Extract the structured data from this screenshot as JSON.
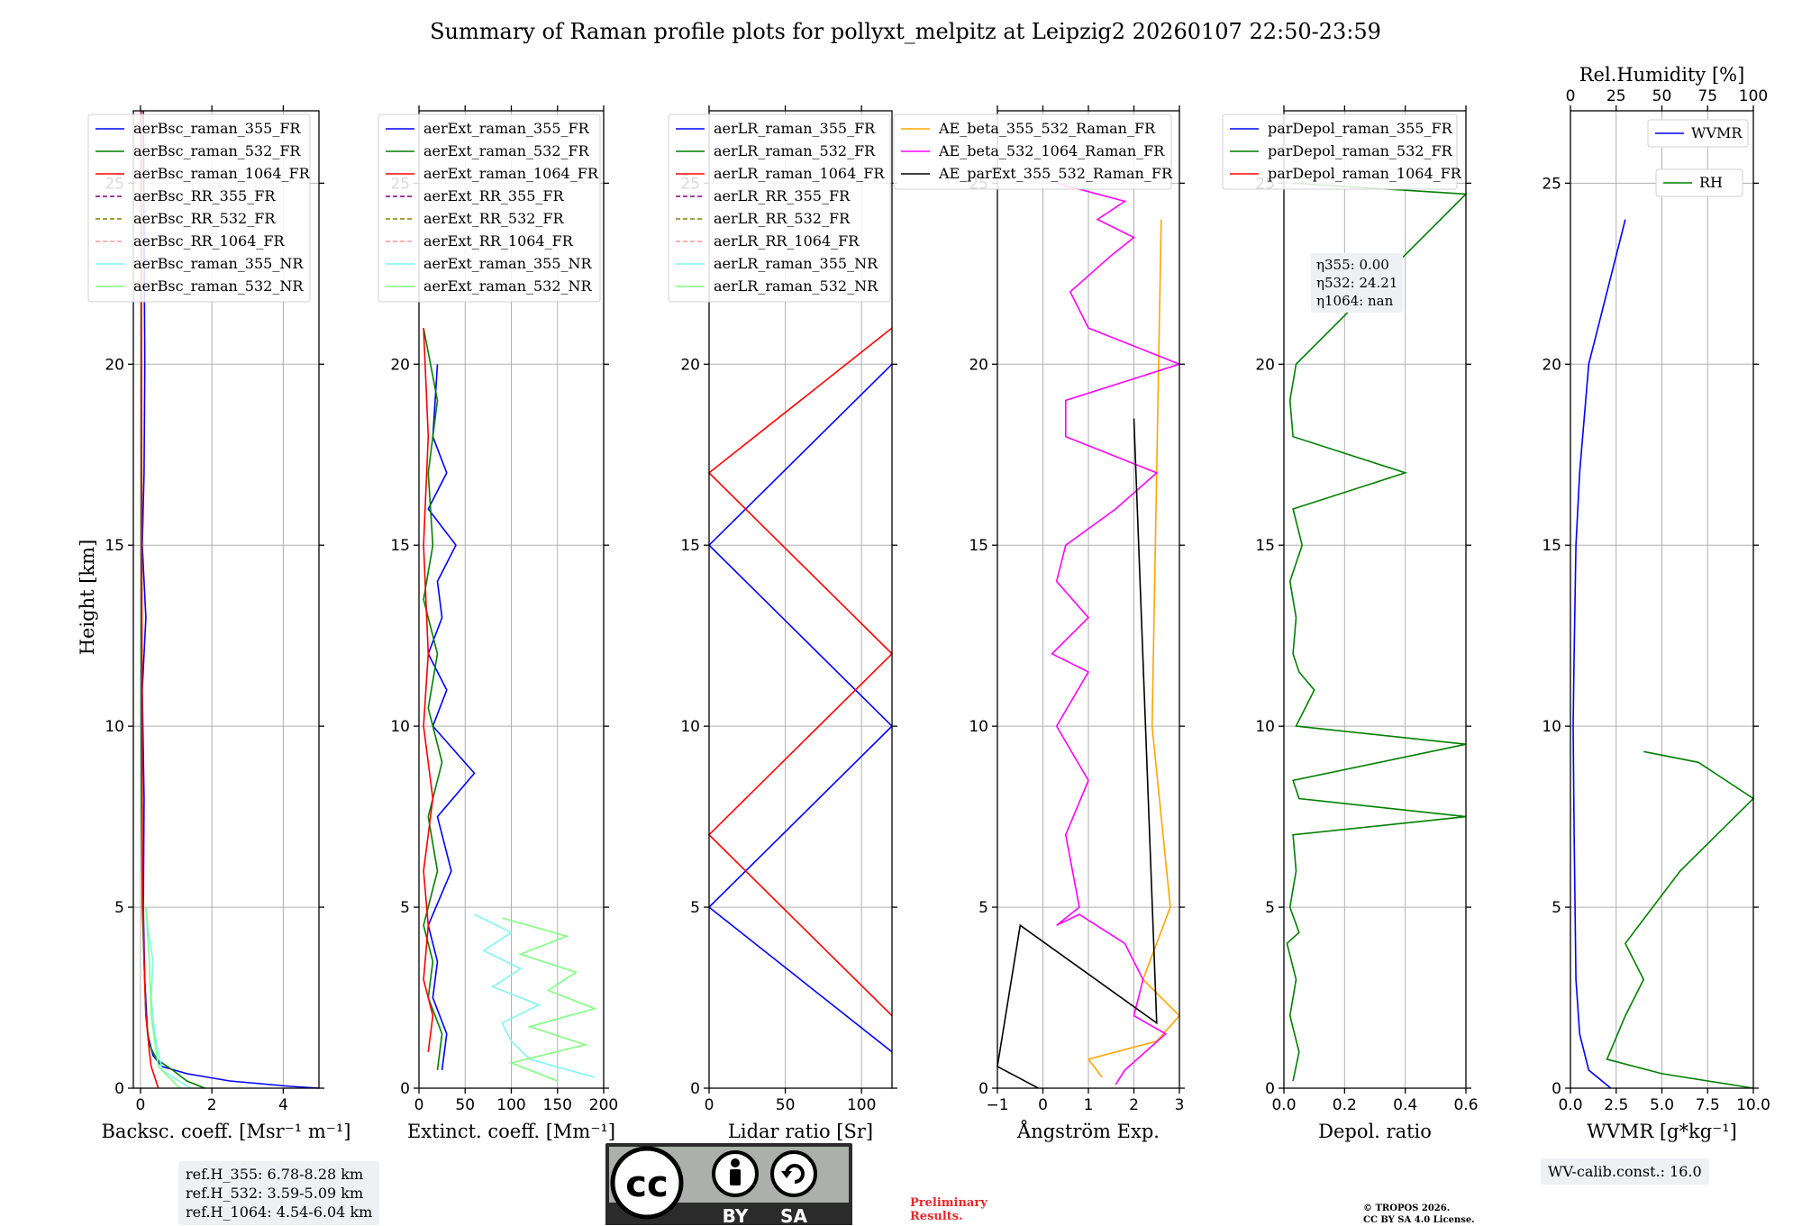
{
  "title": "Summary of Raman profile plots for pollyxt_melpitz at Leipzig2 20260107 22:50-23:59",
  "ylabel": "Height [km]",
  "notes": {
    "refh": [
      "ref.H_355: 6.78-8.28 km",
      "ref.H_532: 3.59-5.09 km",
      "ref.H_1064: 4.54-6.04 km"
    ],
    "wv_calib": "WV-calib.const.: 16.0",
    "preliminary": [
      "Preliminary",
      "Results."
    ],
    "copyright": [
      "© TROPOS 2026.",
      "CC BY SA 4.0 License."
    ],
    "eta": [
      "η355: 0.00",
      "η532: 24.21",
      "η1064: nan"
    ],
    "cc_logo": {
      "cc": "cc",
      "by": "BY",
      "sa": "SA"
    }
  },
  "colors": {
    "blue": "#0000ff",
    "green": "#008000",
    "red": "#ff0000",
    "purple": "#800080",
    "olive": "#808000",
    "salmon": "#ff9999",
    "cyan": "#7ff5f5",
    "lightgreen": "#80ff80",
    "orange": "#ffa500",
    "magenta": "#ff00ff",
    "black": "#000000"
  },
  "chart_data": [
    {
      "type": "line",
      "xlabel": "Backsc. coeff. [Msr⁻¹ m⁻¹]",
      "xlim": [
        -0.2,
        5
      ],
      "ylim": [
        0,
        27
      ],
      "xticks": [
        0,
        2,
        4
      ],
      "xticklabels": [
        "0",
        "2",
        "4"
      ],
      "yticks": [
        0,
        5,
        10,
        15,
        20,
        25
      ],
      "legend": [
        {
          "label": "aerBsc_raman_355_FR",
          "color": "blue",
          "dash": false
        },
        {
          "label": "aerBsc_raman_532_FR",
          "color": "green",
          "dash": false
        },
        {
          "label": "aerBsc_raman_1064_FR",
          "color": "red",
          "dash": false
        },
        {
          "label": "aerBsc_RR_355_FR",
          "color": "purple",
          "dash": true
        },
        {
          "label": "aerBsc_RR_532_FR",
          "color": "olive",
          "dash": true
        },
        {
          "label": "aerBsc_RR_1064_FR",
          "color": "salmon",
          "dash": true
        },
        {
          "label": "aerBsc_raman_355_NR",
          "color": "cyan",
          "dash": false
        },
        {
          "label": "aerBsc_raman_532_NR",
          "color": "lightgreen",
          "dash": false
        }
      ],
      "series": [
        {
          "name": "aerBsc_raman_355_FR",
          "color": "blue",
          "x": [
            5,
            4.2,
            2.5,
            1.3,
            0.6,
            0.35,
            0.2,
            0.12,
            0.08,
            0.1,
            0.05,
            0.15,
            0.05,
            0.1,
            0.12,
            0.08
          ],
          "y": [
            0,
            0.05,
            0.2,
            0.4,
            0.6,
            0.9,
            1.5,
            3,
            5,
            8,
            11,
            13,
            15,
            17,
            20,
            27
          ]
        },
        {
          "name": "aerBsc_raman_532_FR",
          "color": "green",
          "x": [
            1.8,
            1.3,
            0.9,
            0.45,
            0.25,
            0.15,
            0.1,
            0.05,
            0.02,
            0.02
          ],
          "y": [
            0,
            0.2,
            0.5,
            0.8,
            1.2,
            2,
            3.5,
            5,
            10,
            27
          ]
        },
        {
          "name": "aerBsc_raman_1064_FR",
          "color": "red",
          "x": [
            0.5,
            0.4,
            0.3,
            0.25,
            0.15,
            0.1,
            0.05,
            0.02
          ],
          "y": [
            0,
            0.3,
            0.6,
            1,
            2,
            3.5,
            6,
            27
          ]
        },
        {
          "name": "aerBsc_raman_355_NR",
          "color": "cyan",
          "x": [
            1.4,
            0.6,
            0.4,
            0.3,
            0.35,
            0.2,
            0.15
          ],
          "y": [
            0,
            0.5,
            1.5,
            2.5,
            3.5,
            4.5,
            5
          ]
        },
        {
          "name": "aerBsc_raman_532_NR",
          "color": "lightgreen",
          "x": [
            1.1,
            0.5,
            0.3,
            0.25,
            0.15
          ],
          "y": [
            0,
            0.6,
            2,
            3.5,
            5
          ]
        }
      ]
    },
    {
      "type": "line",
      "xlabel": "Extinct. coeff. [Mm⁻¹]",
      "xlim": [
        0,
        200
      ],
      "ylim": [
        0,
        27
      ],
      "xticks": [
        0,
        50,
        100,
        150,
        200
      ],
      "xticklabels": [
        "0",
        "50",
        "100",
        "150",
        "200"
      ],
      "yticks": [
        0,
        5,
        10,
        15,
        20,
        25
      ],
      "legend": [
        {
          "label": "aerExt_raman_355_FR",
          "color": "blue",
          "dash": false
        },
        {
          "label": "aerExt_raman_532_FR",
          "color": "green",
          "dash": false
        },
        {
          "label": "aerExt_raman_1064_FR",
          "color": "red",
          "dash": false
        },
        {
          "label": "aerExt_RR_355_FR",
          "color": "purple",
          "dash": true
        },
        {
          "label": "aerExt_RR_532_FR",
          "color": "olive",
          "dash": true
        },
        {
          "label": "aerExt_RR_1064_FR",
          "color": "salmon",
          "dash": true
        },
        {
          "label": "aerExt_raman_355_NR",
          "color": "cyan",
          "dash": false
        },
        {
          "label": "aerExt_raman_532_NR",
          "color": "lightgreen",
          "dash": false
        }
      ],
      "series": [
        {
          "name": "aerExt_raman_355_FR",
          "color": "blue",
          "x": [
            25,
            30,
            15,
            20,
            10,
            35,
            20,
            60,
            15,
            30,
            10,
            25,
            20,
            40,
            10,
            30,
            15,
            20
          ],
          "y": [
            0.5,
            1.5,
            2.5,
            3.5,
            4.5,
            6,
            7.5,
            8.7,
            10,
            11,
            12,
            13,
            14,
            15,
            16,
            17,
            18,
            20
          ]
        },
        {
          "name": "aerExt_raman_532_FR",
          "color": "green",
          "x": [
            20,
            25,
            10,
            15,
            5,
            20,
            10,
            25,
            10,
            20,
            5,
            15,
            10,
            20,
            5
          ],
          "y": [
            0.5,
            1.5,
            2.5,
            3.5,
            4.5,
            6,
            7.5,
            9,
            10.5,
            12,
            13.5,
            15,
            17,
            19,
            21
          ]
        },
        {
          "name": "aerExt_raman_1064_FR",
          "color": "red",
          "x": [
            10,
            15,
            5,
            10,
            5,
            15,
            5,
            10,
            5,
            10,
            5
          ],
          "y": [
            1,
            2,
            3,
            4.5,
            6,
            8,
            10,
            12,
            15,
            18,
            21
          ]
        },
        {
          "name": "aerExt_raman_355_NR",
          "color": "cyan",
          "x": [
            190,
            120,
            100,
            90,
            130,
            80,
            110,
            70,
            100,
            60
          ],
          "y": [
            0.3,
            0.8,
            1.3,
            1.8,
            2.3,
            2.8,
            3.3,
            3.8,
            4.3,
            4.8
          ]
        },
        {
          "name": "aerExt_raman_532_NR",
          "color": "lightgreen",
          "x": [
            150,
            100,
            180,
            120,
            190,
            140,
            170,
            110,
            160,
            90
          ],
          "y": [
            0.2,
            0.7,
            1.2,
            1.7,
            2.2,
            2.7,
            3.2,
            3.7,
            4.2,
            4.7
          ]
        }
      ]
    },
    {
      "type": "line",
      "xlabel": "Lidar ratio [Sr]",
      "xlim": [
        0,
        120
      ],
      "ylim": [
        0,
        27
      ],
      "xticks": [
        0,
        50,
        100
      ],
      "xticklabels": [
        "0",
        "50",
        "100"
      ],
      "yticks": [
        0,
        5,
        10,
        15,
        20,
        25
      ],
      "legend": [
        {
          "label": "aerLR_raman_355_FR",
          "color": "blue",
          "dash": false
        },
        {
          "label": "aerLR_raman_532_FR",
          "color": "green",
          "dash": false
        },
        {
          "label": "aerLR_raman_1064_FR",
          "color": "red",
          "dash": false
        },
        {
          "label": "aerLR_RR_355_FR",
          "color": "purple",
          "dash": true
        },
        {
          "label": "aerLR_RR_532_FR",
          "color": "olive",
          "dash": true
        },
        {
          "label": "aerLR_RR_1064_FR",
          "color": "salmon",
          "dash": true
        },
        {
          "label": "aerLR_raman_355_NR",
          "color": "cyan",
          "dash": false
        },
        {
          "label": "aerLR_raman_532_NR",
          "color": "lightgreen",
          "dash": false
        }
      ],
      "series": [
        {
          "name": "aerLR_raman_355_FR",
          "color": "blue",
          "x": [
            120,
            0,
            120,
            0,
            120
          ],
          "y": [
            1,
            5,
            10,
            15,
            20
          ]
        },
        {
          "name": "aerLR_raman_1064_FR",
          "color": "red",
          "x": [
            120,
            0,
            120,
            0,
            120
          ],
          "y": [
            2,
            7,
            12,
            17,
            21
          ]
        }
      ]
    },
    {
      "type": "line",
      "xlabel": "Ångström Exp.",
      "xlim": [
        -1,
        3
      ],
      "ylim": [
        0,
        27
      ],
      "xticks": [
        -1,
        0,
        1,
        2,
        3
      ],
      "xticklabels": [
        "−1",
        "0",
        "1",
        "2",
        "3"
      ],
      "yticks": [
        0,
        5,
        10,
        15,
        20,
        25
      ],
      "legend": [
        {
          "label": "AE_beta_355_532_Raman_FR",
          "color": "orange",
          "dash": false
        },
        {
          "label": "AE_beta_532_1064_Raman_FR",
          "color": "magenta",
          "dash": false
        },
        {
          "label": "AE_parExt_355_532_Raman_FR",
          "color": "black",
          "dash": false
        }
      ],
      "series": [
        {
          "name": "AE_beta_355_532_Raman_FR",
          "color": "orange",
          "x": [
            1.3,
            1.0,
            2.5,
            3.0,
            2.2,
            2.8,
            2.4,
            2.6
          ],
          "y": [
            0.3,
            0.8,
            1.3,
            2,
            3,
            5,
            10,
            24
          ]
        },
        {
          "name": "AE_beta_532_1064_Raman_FR",
          "color": "magenta",
          "x": [
            1.6,
            1.8,
            2.7,
            2.0,
            2.2,
            1.8,
            0.8,
            0.3,
            0.8,
            0.5,
            1.0,
            0.3,
            1.0,
            0.2,
            1.0,
            0.3,
            0.5,
            1.6,
            2.5,
            0.5,
            0.5,
            3.0,
            1.0,
            0.6,
            1.5,
            2.0,
            1.2,
            1.8,
            0.3
          ],
          "y": [
            0.1,
            0.5,
            1.5,
            2,
            3,
            4,
            4.8,
            4.5,
            5,
            7,
            8.5,
            10,
            11.5,
            12,
            13,
            14,
            15,
            16,
            17,
            18,
            19,
            20,
            21,
            22,
            23,
            23.5,
            24,
            24.5,
            25
          ]
        },
        {
          "name": "AE_parExt_355_532_Raman_FR",
          "color": "black",
          "x": [
            -0.1,
            -1.0,
            -0.5,
            2.5,
            2.0
          ],
          "y": [
            0,
            0.6,
            4.5,
            1.8,
            18.5
          ]
        }
      ]
    },
    {
      "type": "line",
      "xlabel": "Depol. ratio",
      "xlim": [
        0,
        0.6
      ],
      "ylim": [
        0,
        27
      ],
      "xticks": [
        0,
        0.2,
        0.4,
        0.6
      ],
      "xticklabels": [
        "0.0",
        "0.2",
        "0.4",
        "0.6"
      ],
      "yticks": [
        0,
        5,
        10,
        15,
        20,
        25
      ],
      "legend": [
        {
          "label": "parDepol_raman_355_FR",
          "color": "blue",
          "dash": false
        },
        {
          "label": "parDepol_raman_532_FR",
          "color": "green",
          "dash": false
        },
        {
          "label": "parDepol_raman_1064_FR",
          "color": "red",
          "dash": false
        }
      ],
      "series": [
        {
          "name": "parDepol_raman_532_FR",
          "color": "green",
          "x": [
            0.03,
            0.05,
            0.02,
            0.04,
            0.01,
            0.05,
            0.02,
            0.04,
            0.03,
            0.6,
            0.05,
            0.03,
            0.6,
            0.04,
            0.1,
            0.05,
            0.03,
            0.04,
            0.02,
            0.06,
            0.03,
            0.4,
            0.03,
            0.02,
            0.04,
            0.6,
            0.03
          ],
          "y": [
            0.2,
            1,
            2,
            3,
            4,
            4.3,
            5,
            6,
            7,
            7.5,
            8,
            8.5,
            9.5,
            10,
            11,
            11.5,
            12,
            13,
            14,
            15,
            16,
            17,
            18,
            19,
            20,
            24.7,
            25
          ]
        }
      ]
    },
    {
      "type": "line",
      "xlabel": "WVMR [g*kg⁻¹]",
      "xlabel2": "Rel.Humidity [%]",
      "xlim": [
        0,
        10
      ],
      "xlim2": [
        0,
        100
      ],
      "ylim": [
        0,
        27
      ],
      "xticks": [
        0,
        2.5,
        5,
        7.5,
        10
      ],
      "xticklabels": [
        "0.0",
        "2.5",
        "5.0",
        "7.5",
        "10.0"
      ],
      "xticks2": [
        0,
        25,
        50,
        75,
        100
      ],
      "xticklabels2": [
        "0",
        "25",
        "50",
        "75",
        "100"
      ],
      "yticks": [
        0,
        5,
        10,
        15,
        20,
        25
      ],
      "legend": [
        {
          "label": "WVMR",
          "color": "blue",
          "dash": false
        },
        {
          "label": "RH",
          "color": "green",
          "dash": false
        }
      ],
      "series": [
        {
          "name": "WVMR",
          "color": "blue",
          "x": [
            2.2,
            1.0,
            0.5,
            0.3,
            0.25,
            0.2,
            0.15,
            0.2,
            0.3,
            0.5,
            1.0,
            2.0,
            3.0
          ],
          "y": [
            0,
            0.5,
            1.5,
            3,
            5,
            7,
            10,
            12,
            15,
            17,
            20,
            22,
            24
          ]
        },
        {
          "name": "RH",
          "color": "green",
          "x": [
            100,
            50,
            20,
            30,
            40,
            30,
            45,
            60,
            80,
            100,
            70,
            40
          ],
          "y": [
            0,
            0.4,
            0.8,
            2,
            3,
            4,
            5,
            6,
            7,
            8,
            9,
            9.3
          ]
        }
      ]
    }
  ]
}
